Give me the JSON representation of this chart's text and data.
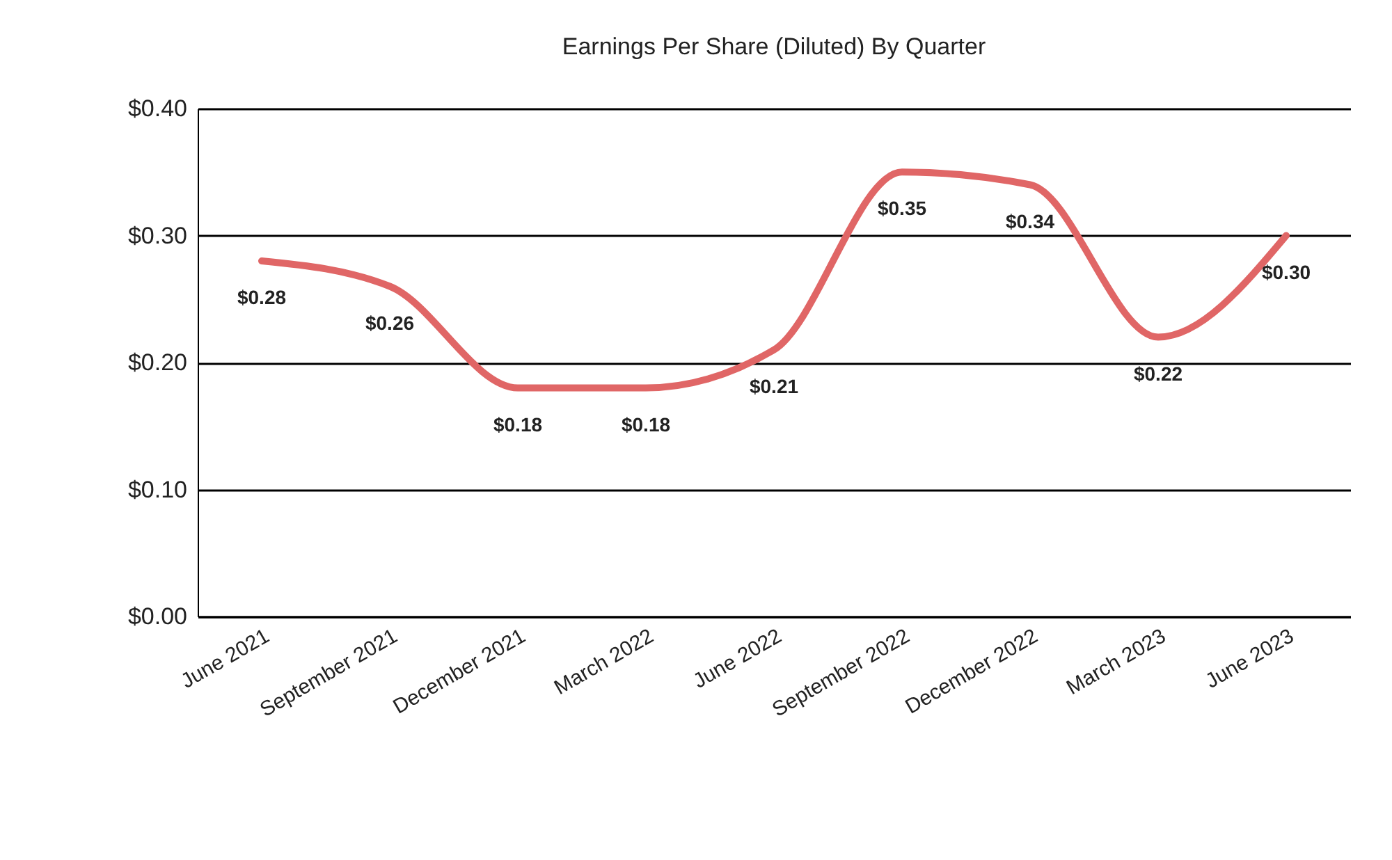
{
  "chart_data": {
    "type": "line",
    "title": "Earnings Per Share (Diluted) By Quarter",
    "categories": [
      "June 2021",
      "September 2021",
      "December 2021",
      "March 2022",
      "June 2022",
      "September 2022",
      "December 2022",
      "March 2023",
      "June 2023"
    ],
    "series": [
      {
        "color": "#e06666",
        "values": [
          0.28,
          0.26,
          0.18,
          0.18,
          0.21,
          0.35,
          0.34,
          0.22,
          0.3
        ],
        "value_labels": [
          "$0.28",
          "$0.26",
          "$0.18",
          "$0.18",
          "$0.21",
          "$0.35",
          "$0.34",
          "$0.22",
          "$0.30"
        ]
      }
    ],
    "ylim": [
      0,
      0.4
    ],
    "yticks": [
      {
        "value": 0,
        "label": "$0.00"
      },
      {
        "value": 0.1,
        "label": "$0.10"
      },
      {
        "value": 0.2,
        "label": "$0.20"
      },
      {
        "value": 0.3,
        "label": "$0.30"
      },
      {
        "value": 0.4,
        "label": "$0.40"
      }
    ],
    "grid": "y",
    "marker": "none",
    "line_style": "solid"
  }
}
